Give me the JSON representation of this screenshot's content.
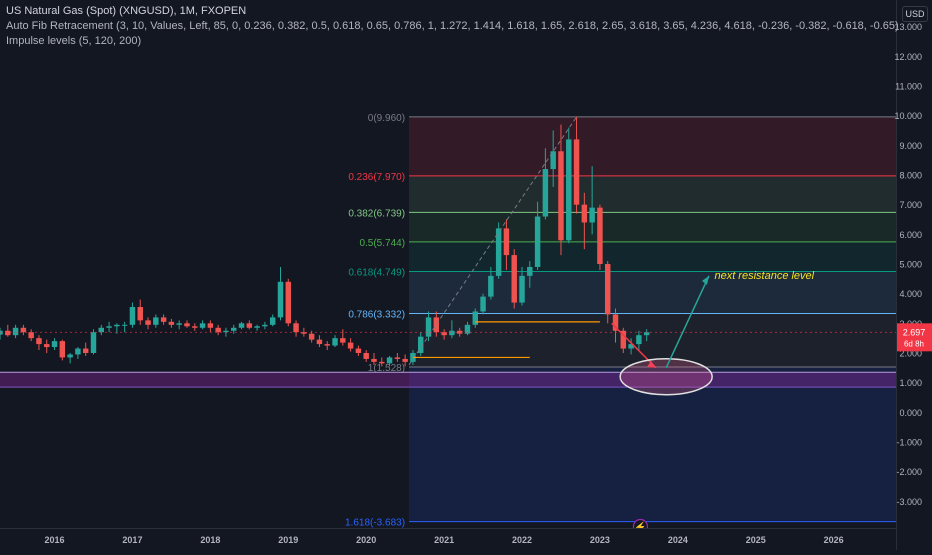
{
  "legend": {
    "symbol_line": "US Natural Gas (Spot) (XNGUSD), 1M, FXOPEN",
    "fib_line": "Auto Fib Retracement (3, 10, Values, Left, 85, 0, 0.236, 0.382, 0.5, 0.618, 0.65, 0.786, 1, 1.272, 1.414, 1.618, 1.65, 2.618, 2.65, 3.618, 3.65, 4.236, 4.618, -0.236, -0.382, -0.618, -0.65)",
    "impulse_line": "Impulse levels (5, 120, 200)"
  },
  "price_axis": {
    "currency_button": "USD",
    "current_price": "2.697",
    "countdown": "6d 8h",
    "current_price_color": "#f23645"
  },
  "annotation": {
    "text": "next resistance level",
    "color": "#f5e31e"
  },
  "colors": {
    "up": "#26a69a",
    "down": "#ef5350",
    "background": "#131722"
  },
  "chart_data": {
    "type": "candlestick",
    "title": "US Natural Gas (Spot) (XNGUSD), 1M, FXOPEN",
    "x_ticks": [
      "2016",
      "2017",
      "2018",
      "2019",
      "2020",
      "2021",
      "2022",
      "2023",
      "2024",
      "2025",
      "2026"
    ],
    "y_ticks": [
      "13.000",
      "12.000",
      "11.000",
      "10.000",
      "9.000",
      "8.000",
      "7.000",
      "6.000",
      "5.000",
      "4.000",
      "3.000",
      "2.000",
      "1.000",
      "0.000",
      "-1.000",
      "-2.000",
      "-3.000"
    ],
    "ylim": [
      -3.9,
      13.9
    ],
    "xlim": [
      2015.3,
      2026.8
    ],
    "fib_levels": [
      {
        "label": "0(9.960)",
        "value": 9.96,
        "color": "#787b86"
      },
      {
        "label": "0.236(7.970)",
        "value": 7.97,
        "color": "#f23645"
      },
      {
        "label": "0.382(6.739)",
        "value": 6.739,
        "color": "#81c784"
      },
      {
        "label": "0.5(5.744)",
        "value": 5.744,
        "color": "#4caf50"
      },
      {
        "label": "0.618(4.749)",
        "value": 4.749,
        "color": "#089981"
      },
      {
        "label": "0.786(3.332)",
        "value": 3.332,
        "color": "#64b5f6"
      },
      {
        "label": "1(1.528)",
        "value": 1.528,
        "color": "#787b86"
      },
      {
        "label": "1.618(-3.683)",
        "value": -3.683,
        "color": "#2962ff"
      }
    ],
    "impulse_zone": [
      0.85,
      1.35
    ],
    "ohlc": [
      [
        2015.3,
        2.62,
        2.85,
        2.45,
        2.75
      ],
      [
        2015.4,
        2.75,
        2.95,
        2.55,
        2.6
      ],
      [
        2015.5,
        2.6,
        2.95,
        2.5,
        2.85
      ],
      [
        2015.6,
        2.85,
        2.95,
        2.6,
        2.7
      ],
      [
        2015.7,
        2.7,
        2.8,
        2.4,
        2.5
      ],
      [
        2015.8,
        2.5,
        2.6,
        2.1,
        2.3
      ],
      [
        2015.9,
        2.3,
        2.45,
        2.0,
        2.2
      ],
      [
        2016.0,
        2.2,
        2.5,
        2.1,
        2.4
      ],
      [
        2016.1,
        2.4,
        2.45,
        1.75,
        1.85
      ],
      [
        2016.2,
        1.85,
        2.0,
        1.65,
        1.95
      ],
      [
        2016.3,
        1.95,
        2.2,
        1.8,
        2.15
      ],
      [
        2016.4,
        2.15,
        2.35,
        1.9,
        2.0
      ],
      [
        2016.5,
        2.0,
        2.8,
        1.95,
        2.7
      ],
      [
        2016.6,
        2.7,
        2.95,
        2.6,
        2.85
      ],
      [
        2016.7,
        2.85,
        3.05,
        2.7,
        2.9
      ],
      [
        2016.8,
        2.9,
        3.0,
        2.65,
        2.95
      ],
      [
        2016.9,
        2.95,
        3.05,
        2.7,
        2.95
      ],
      [
        2017.0,
        2.95,
        3.7,
        2.85,
        3.55
      ],
      [
        2017.1,
        3.55,
        3.8,
        2.95,
        3.1
      ],
      [
        2017.2,
        3.1,
        3.2,
        2.8,
        2.95
      ],
      [
        2017.3,
        2.95,
        3.3,
        2.85,
        3.2
      ],
      [
        2017.4,
        3.2,
        3.3,
        2.95,
        3.05
      ],
      [
        2017.5,
        3.05,
        3.15,
        2.85,
        2.95
      ],
      [
        2017.6,
        2.95,
        3.1,
        2.8,
        3.0
      ],
      [
        2017.7,
        3.0,
        3.1,
        2.85,
        2.9
      ],
      [
        2017.8,
        2.9,
        3.0,
        2.75,
        2.85
      ],
      [
        2017.9,
        2.85,
        3.1,
        2.8,
        3.0
      ],
      [
        2018.0,
        3.0,
        3.1,
        2.7,
        2.85
      ],
      [
        2018.1,
        2.85,
        2.95,
        2.6,
        2.7
      ],
      [
        2018.2,
        2.7,
        2.85,
        2.55,
        2.75
      ],
      [
        2018.3,
        2.75,
        2.95,
        2.65,
        2.85
      ],
      [
        2018.4,
        2.85,
        3.05,
        2.8,
        3.0
      ],
      [
        2018.5,
        3.0,
        3.1,
        2.8,
        2.85
      ],
      [
        2018.6,
        2.85,
        2.95,
        2.75,
        2.9
      ],
      [
        2018.7,
        2.9,
        3.05,
        2.8,
        2.95
      ],
      [
        2018.8,
        2.95,
        3.3,
        2.9,
        3.2
      ],
      [
        2018.9,
        3.2,
        4.9,
        3.1,
        4.4
      ],
      [
        2019.0,
        4.4,
        4.5,
        2.9,
        3.0
      ],
      [
        2019.1,
        3.0,
        3.1,
        2.55,
        2.7
      ],
      [
        2019.2,
        2.7,
        2.85,
        2.55,
        2.65
      ],
      [
        2019.3,
        2.65,
        2.75,
        2.35,
        2.45
      ],
      [
        2019.4,
        2.45,
        2.6,
        2.2,
        2.3
      ],
      [
        2019.5,
        2.3,
        2.4,
        2.1,
        2.25
      ],
      [
        2019.6,
        2.25,
        2.6,
        2.2,
        2.5
      ],
      [
        2019.7,
        2.5,
        2.8,
        2.25,
        2.35
      ],
      [
        2019.8,
        2.35,
        2.5,
        2.05,
        2.15
      ],
      [
        2019.9,
        2.15,
        2.25,
        1.9,
        2.0
      ],
      [
        2020.0,
        2.0,
        2.1,
        1.7,
        1.8
      ],
      [
        2020.1,
        1.8,
        2.0,
        1.6,
        1.7
      ],
      [
        2020.2,
        1.7,
        1.85,
        1.55,
        1.65
      ],
      [
        2020.3,
        1.65,
        1.9,
        1.55,
        1.85
      ],
      [
        2020.4,
        1.85,
        2.0,
        1.7,
        1.8
      ],
      [
        2020.5,
        1.8,
        1.95,
        1.55,
        1.7
      ],
      [
        2020.6,
        1.7,
        2.1,
        1.6,
        2.0
      ],
      [
        2020.7,
        2.0,
        2.7,
        1.9,
        2.55
      ],
      [
        2020.8,
        2.55,
        3.4,
        2.4,
        3.2
      ],
      [
        2020.9,
        3.2,
        3.4,
        2.55,
        2.7
      ],
      [
        2021.0,
        2.7,
        2.8,
        2.45,
        2.6
      ],
      [
        2021.1,
        2.6,
        3.1,
        2.5,
        2.75
      ],
      [
        2021.2,
        2.75,
        2.85,
        2.55,
        2.65
      ],
      [
        2021.3,
        2.65,
        3.05,
        2.6,
        2.95
      ],
      [
        2021.4,
        2.95,
        3.5,
        2.85,
        3.4
      ],
      [
        2021.5,
        3.4,
        4.0,
        3.3,
        3.9
      ],
      [
        2021.6,
        3.9,
        4.9,
        3.8,
        4.6
      ],
      [
        2021.7,
        4.6,
        6.4,
        4.5,
        6.2
      ],
      [
        2021.8,
        6.2,
        6.5,
        4.8,
        5.3
      ],
      [
        2021.9,
        5.3,
        5.5,
        3.5,
        3.7
      ],
      [
        2022.0,
        3.7,
        4.9,
        3.6,
        4.6
      ],
      [
        2022.1,
        4.6,
        5.1,
        4.2,
        4.9
      ],
      [
        2022.2,
        4.9,
        7.1,
        4.8,
        6.6
      ],
      [
        2022.3,
        6.6,
        8.9,
        6.5,
        8.2
      ],
      [
        2022.4,
        8.2,
        9.5,
        7.6,
        8.8
      ],
      [
        2022.5,
        8.8,
        9.7,
        5.3,
        5.8
      ],
      [
        2022.6,
        5.8,
        9.6,
        5.7,
        9.2
      ],
      [
        2022.7,
        9.2,
        9.96,
        6.7,
        7.0
      ],
      [
        2022.8,
        7.0,
        7.4,
        5.5,
        6.4
      ],
      [
        2022.9,
        6.4,
        8.3,
        6.0,
        6.9
      ],
      [
        2023.0,
        6.9,
        7.0,
        4.8,
        5.0
      ],
      [
        2023.1,
        5.0,
        5.1,
        3.0,
        3.3
      ],
      [
        2023.2,
        3.3,
        3.5,
        2.35,
        2.75
      ],
      [
        2023.3,
        2.75,
        2.85,
        2.0,
        2.15
      ],
      [
        2023.4,
        2.15,
        2.5,
        1.95,
        2.3
      ],
      [
        2023.5,
        2.3,
        2.75,
        2.1,
        2.6
      ],
      [
        2023.6,
        2.6,
        2.8,
        2.4,
        2.7
      ]
    ]
  }
}
